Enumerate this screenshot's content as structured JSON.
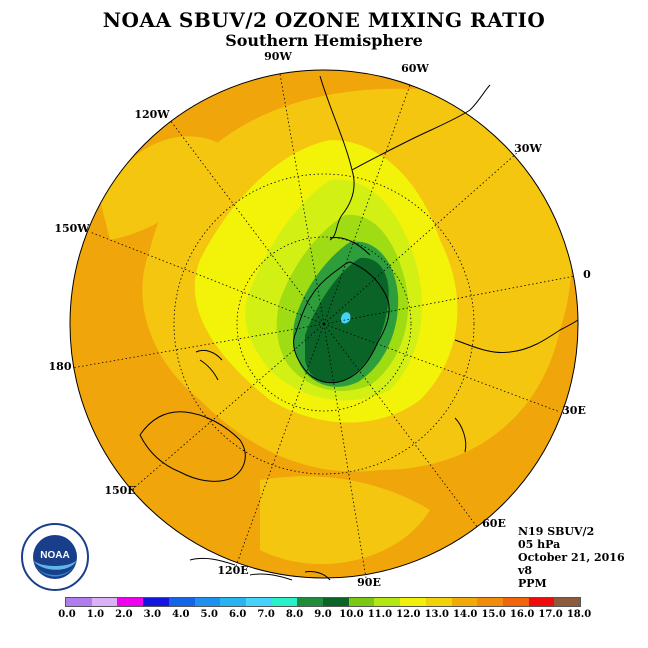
{
  "title": "NOAA SBUV/2 OZONE MIXING RATIO",
  "subtitle": "Southern Hemisphere",
  "longitude_labels": [
    "90W",
    "60W",
    "120W",
    "30W",
    "150W",
    "0",
    "180",
    "30E",
    "150E",
    "60E",
    "120E",
    "90E"
  ],
  "info": {
    "instrument": "N19 SBUV/2",
    "level": "05 hPa",
    "date": "October 21, 2016",
    "version": "v8",
    "units": "PPM"
  },
  "logo_text": "NOAA",
  "colorbar": {
    "colors": [
      "#b07cf0",
      "#dcb0f4",
      "#f000f0",
      "#1414e0",
      "#1464e8",
      "#1e90f0",
      "#28b4f0",
      "#46d2fa",
      "#28f0c8",
      "#1e8c3c",
      "#0a6428",
      "#7cc814",
      "#b4e614",
      "#f0f00a",
      "#f0d20a",
      "#f0aa0a",
      "#f08c0a",
      "#f0640a",
      "#f00a0a",
      "#8c5a3c"
    ],
    "ticks": [
      "0.0",
      "1.0",
      "2.0",
      "3.0",
      "4.0",
      "5.0",
      "6.0",
      "7.0",
      "8.0",
      "9.0",
      "10.0",
      "11.0",
      "12.0",
      "13.0",
      "14.0",
      "15.0",
      "16.0",
      "17.0",
      "18.0"
    ]
  }
}
